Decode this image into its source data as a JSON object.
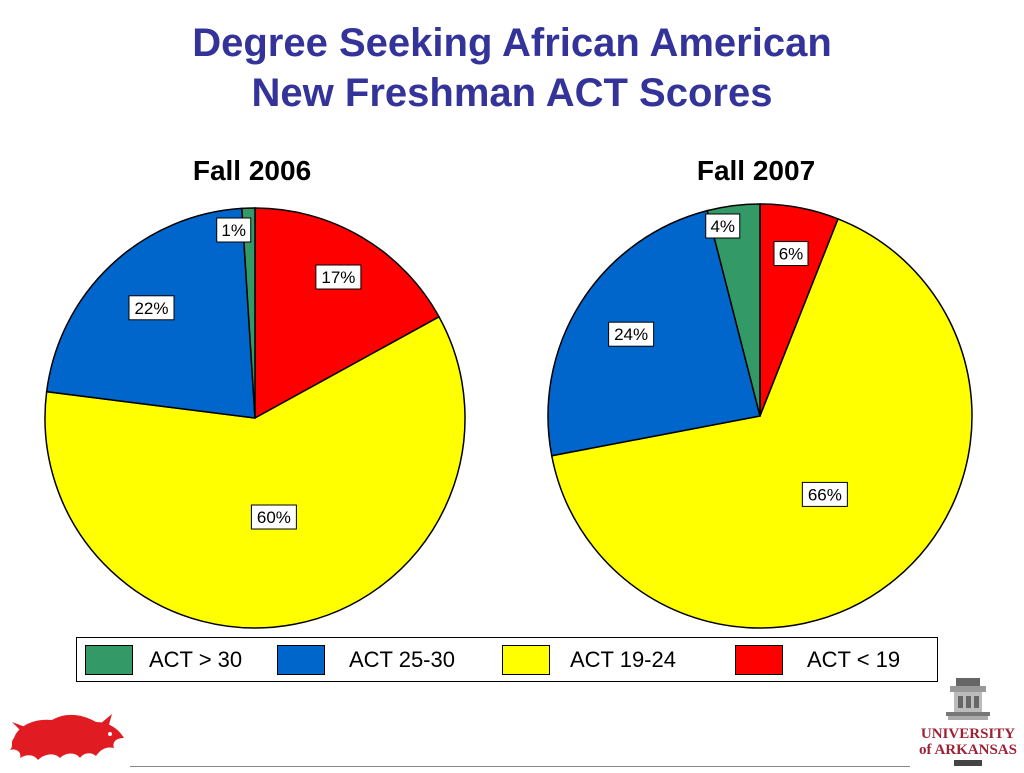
{
  "title_lines": [
    "Degree Seeking African American",
    "New Freshman ACT Scores"
  ],
  "chart_data": [
    {
      "type": "pie",
      "title": "Fall 2006",
      "categories": [
        "ACT > 30",
        "ACT 25-30",
        "ACT 19-24",
        "ACT < 19"
      ],
      "values": [
        1,
        22,
        60,
        17
      ],
      "labels": [
        "1%",
        "22%",
        "60%",
        "17%"
      ],
      "colors": [
        "#339966",
        "#0066cc",
        "#ffff00",
        "#ff0000"
      ]
    },
    {
      "type": "pie",
      "title": "Fall 2007",
      "categories": [
        "ACT > 30",
        "ACT 25-30",
        "ACT 19-24",
        "ACT < 19"
      ],
      "values": [
        4,
        24,
        66,
        6
      ],
      "labels": [
        "4%",
        "24%",
        "66%",
        "6%"
      ],
      "colors": [
        "#339966",
        "#0066cc",
        "#ffff00",
        "#ff0000"
      ]
    }
  ],
  "legend": {
    "items": [
      {
        "label": "ACT > 30",
        "color": "#339966"
      },
      {
        "label": "ACT 25-30",
        "color": "#0066cc"
      },
      {
        "label": "ACT 19-24",
        "color": "#ffff00"
      },
      {
        "label": "ACT < 19",
        "color": "#ff0000"
      }
    ]
  },
  "logos": {
    "left_icon": "razorback-icon",
    "right_icon": "university-seal-icon",
    "right_text_line1": "UNIVERSITY",
    "right_text_line2": "of ARKANSAS"
  }
}
